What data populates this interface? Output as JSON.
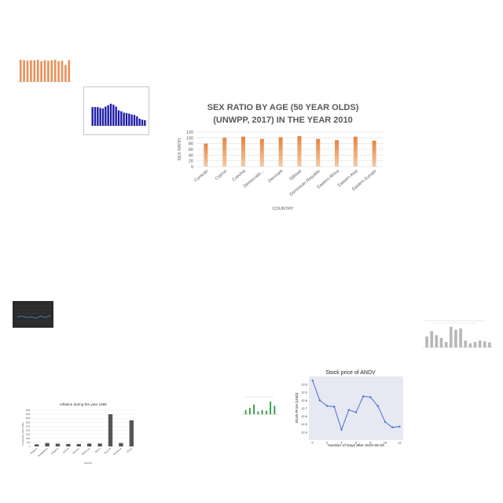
{
  "colors": {
    "orange": "#e8915a",
    "orange_light": "#f0b487",
    "blue_bar": "#1a1aa8",
    "dark_bg": "#2b2b2b",
    "gray_bar": "#b8b8b8",
    "dark_gray_bar": "#555555",
    "green": "#2e9e3e",
    "line_blue": "#4a6fd0",
    "plot_bg": "#e6e8f2",
    "axis_text": "#595959"
  },
  "chart_data": [
    {
      "id": "main",
      "type": "bar",
      "title_line1": "SEX RATIO BY AGE (50 YEAR OLDS)",
      "title_line2": "(UNWPP, 2017) IN THE YEAR 2010",
      "xlabel": "COUNTRY",
      "ylabel": "SEX RATIO",
      "ylim": [
        0,
        120
      ],
      "yticks": [
        0,
        20,
        40,
        60,
        80,
        100,
        120
      ],
      "categories": [
        "Curacao",
        "Cyprus",
        "Czechia",
        "Democratic...",
        "Denmark",
        "Djibouti",
        "Dominican Republic",
        "Eastern Africa",
        "Eastern Asia",
        "Eastern Europe"
      ],
      "values": [
        80,
        100,
        104,
        96,
        102,
        106,
        96,
        92,
        104,
        90
      ]
    },
    {
      "id": "stock",
      "type": "line",
      "title": "Stock price of ANDV",
      "xlabel": "Number of Days after 2010-05-03",
      "ylabel": "Stock Price (USD)",
      "xlim": [
        -0.5,
        12.5
      ],
      "ylim": [
        12.3,
        13.1
      ],
      "xticks": [
        0,
        2,
        4,
        6,
        8,
        10,
        12
      ],
      "yticks": [
        "12.4",
        "12.5",
        "12.6",
        "12.7",
        "12.8",
        "12.9",
        "13.0"
      ],
      "x": [
        0,
        1,
        2,
        3,
        4,
        5,
        6,
        7,
        8,
        9,
        10,
        11,
        12
      ],
      "values": [
        13.05,
        12.8,
        12.73,
        12.72,
        12.43,
        12.68,
        12.65,
        12.85,
        12.84,
        12.73,
        12.53,
        12.46,
        12.47
      ]
    },
    {
      "id": "inflation",
      "type": "bar",
      "title": "Inflation during the year 1985",
      "xlabel": "Country",
      "ylabel": "Consumer price index",
      "ylim": [
        0,
        4500
      ],
      "yticks": [
        "0",
        "500",
        "1000",
        "1500",
        "2000",
        "2500",
        "3000",
        "3500",
        "4000",
        "4500"
      ],
      "categories": [
        "Belgium",
        "Bangladesh",
        "Bulgaria",
        "Bolivia",
        "Bahrain",
        "Bahamas",
        "Belize",
        "Burundi",
        "Barbados",
        "Brazil"
      ],
      "values": [
        260,
        420,
        340,
        300,
        300,
        360,
        360,
        4000,
        420,
        3250
      ]
    },
    {
      "id": "thumb_orange",
      "type": "bar",
      "values": [
        92,
        90,
        88,
        90,
        90,
        92,
        86,
        90,
        88,
        90,
        92,
        86,
        88,
        70,
        90
      ]
    },
    {
      "id": "thumb_blue",
      "type": "bar",
      "values": [
        80,
        80,
        80,
        76,
        74,
        82,
        88,
        94,
        90,
        82,
        66,
        62,
        56,
        54,
        52,
        48,
        46,
        40,
        30,
        26,
        24
      ]
    },
    {
      "id": "thumb_gray",
      "type": "bar",
      "values": [
        40,
        60,
        45,
        35,
        20,
        75,
        65,
        70,
        25,
        15,
        20,
        25,
        22,
        18
      ]
    },
    {
      "id": "thumb_green",
      "type": "bar",
      "values": [
        30,
        45,
        70,
        20,
        30,
        25,
        90,
        60
      ]
    }
  ]
}
